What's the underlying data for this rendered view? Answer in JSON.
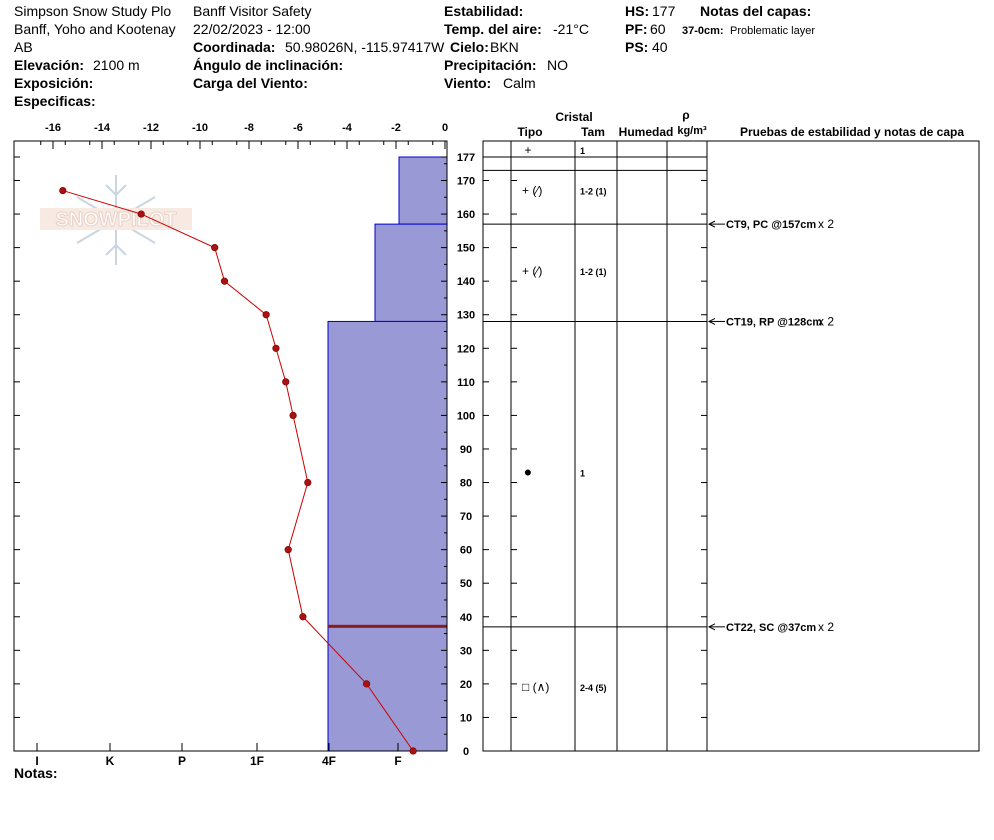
{
  "header": {
    "site": "Simpson Snow Study Plo",
    "region": "Banff, Yoho and Kootenay",
    "province": "AB",
    "elevation_label": "Elevación:",
    "elevation_value": "2100 m",
    "aspect_label": "Exposición:",
    "specifics_label": "Especificas:",
    "operation": "Banff  Visitor Safety",
    "datetime": "22/02/2023 - 12:00",
    "coord_label": "Coordinada:",
    "coord_value": "50.98026N, -115.97417W",
    "slope_label": "Ángulo de inclinación:",
    "wind_load_label": "Carga del Viento:",
    "stability_label": "Estabilidad:",
    "air_temp_label": "Temp. del aire:",
    "air_temp_value": "-21°C",
    "sky_label": "Cielo:",
    "sky_value": "BKN",
    "precip_label": "Precipitación:",
    "precip_value": "NO",
    "wind_label": "Viento:",
    "wind_value": "Calm",
    "hs_label": "HS:",
    "hs_value": "177",
    "pf_label": "PF:",
    "pf_value": "60",
    "ps_label": "PS:",
    "ps_value": "40",
    "layer_notes_label": "Notas del capas:",
    "layer_note_depth": "37-0cm:",
    "layer_note_text": "Problematic layer"
  },
  "footer": {
    "notes_label": "Notas:"
  },
  "watermark": "SNOWPILOT",
  "colors": {
    "hardness_fill": "#9999d6",
    "hardness_stroke": "#0000cc",
    "temp_line": "#cc0000",
    "temp_dot": "#aa1111",
    "weak_layer": "#8b1a1a"
  },
  "chart_data": {
    "type": "snow_profile",
    "temperature_axis": {
      "ticks": [
        "-16",
        "-14",
        "-12",
        "-10",
        "-8",
        "-6",
        "-4",
        "-2",
        "0"
      ],
      "range": [
        -16.5,
        0
      ]
    },
    "height_axis": {
      "ticks": [
        "177",
        "170",
        "160",
        "150",
        "140",
        "130",
        "120",
        "110",
        "100",
        "90",
        "80",
        "70",
        "60",
        "50",
        "40",
        "30",
        "20",
        "10",
        "0"
      ],
      "range": [
        0,
        177
      ]
    },
    "hardness_axis": {
      "ticks": [
        "I",
        "K",
        "P",
        "1F",
        "4F",
        "F"
      ]
    },
    "temperature_profile": [
      {
        "h": 167,
        "t": -15.6
      },
      {
        "h": 160,
        "t": -12.4
      },
      {
        "h": 150,
        "t": -9.4
      },
      {
        "h": 140,
        "t": -9.0
      },
      {
        "h": 130,
        "t": -7.3
      },
      {
        "h": 120,
        "t": -6.9
      },
      {
        "h": 110,
        "t": -6.5
      },
      {
        "h": 100,
        "t": -6.2
      },
      {
        "h": 80,
        "t": -5.6
      },
      {
        "h": 60,
        "t": -6.4
      },
      {
        "h": 40,
        "t": -5.8
      },
      {
        "h": 20,
        "t": -3.2
      },
      {
        "h": 0,
        "t": -1.3
      }
    ],
    "hardness_layers": [
      {
        "bottom": 157,
        "top": 177,
        "hardness": "F+"
      },
      {
        "bottom": 128,
        "top": 157,
        "hardness": "F-"
      },
      {
        "bottom": 37,
        "top": 128,
        "hardness": "4F"
      },
      {
        "bottom": 0,
        "top": 37,
        "hardness": "4F"
      }
    ],
    "weak_layer_height": 37,
    "column_headers": {
      "crystal": "Cristal",
      "type": "Tipo",
      "size": "Tam",
      "moisture": "Humedad",
      "density_symbol": "ρ",
      "density_unit": "kg/m³",
      "tests": "Pruebas de estabilidad y notas de capa"
    },
    "crystal_layers": [
      {
        "bottom": 177,
        "top": 177,
        "type": "+",
        "size": "1",
        "mid": 177
      },
      {
        "bottom": 157,
        "top": 177,
        "type": "+ (⁄)",
        "size": "1-2 (1)",
        "mid": 167
      },
      {
        "bottom": 128,
        "top": 157,
        "type": "+ (⁄)",
        "size": "1-2 (1)",
        "mid": 143
      },
      {
        "bottom": 37,
        "top": 128,
        "type": "●",
        "size": "1",
        "mid": 83
      },
      {
        "bottom": 0,
        "top": 37,
        "type": "□ (∧)",
        "size": "2-4 (5)",
        "mid": 19
      }
    ],
    "layer_boundaries": [
      173,
      157,
      128,
      37
    ],
    "stability_tests": [
      {
        "h": 157,
        "text": "CT9, PC @157cm",
        "count": "x 2"
      },
      {
        "h": 128,
        "text": "CT19, RP @128cm",
        "count": "x 2"
      },
      {
        "h": 37,
        "text": "CT22, SC @37cm",
        "count": "x 2"
      }
    ]
  }
}
